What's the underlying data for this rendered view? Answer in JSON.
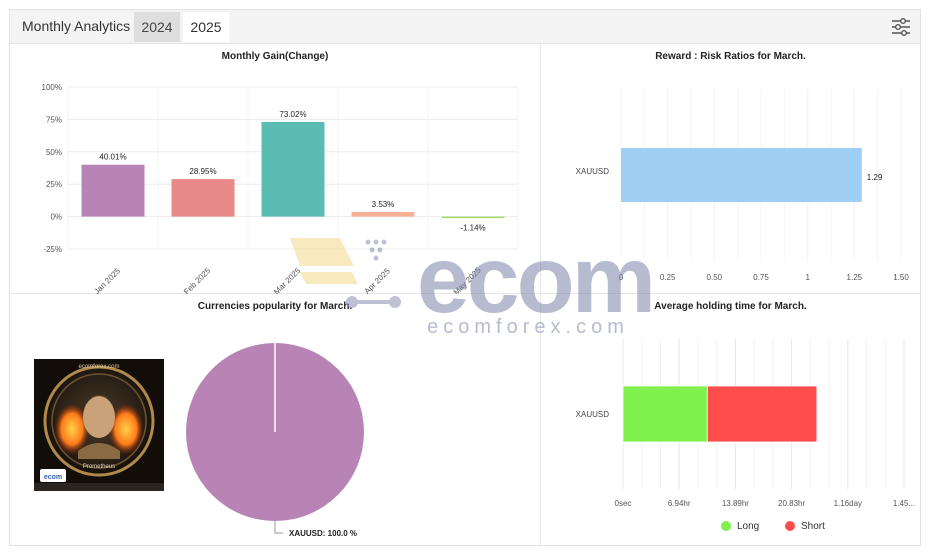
{
  "header": {
    "title": "Monthly Analytics",
    "tabs": [
      "2024",
      "2025"
    ],
    "active_tab": "2025"
  },
  "panels": {
    "gain_title": "Monthly Gain(Change)",
    "rr_title": "Reward : Risk Ratios for March.",
    "currency_title": "Currencies popularity for March.",
    "holding_title": "Average holding time for March."
  },
  "chart_data": [
    {
      "type": "bar",
      "title": "Monthly Gain(Change)",
      "categories": [
        "Jan 2025",
        "Feb 2025",
        "Mar 2025",
        "Apr 2025",
        "May 2025"
      ],
      "values": [
        40.01,
        28.95,
        73.02,
        3.53,
        -1.14
      ],
      "value_labels": [
        "40.01%",
        "28.95%",
        "73.02%",
        "3.53%",
        "-1.14%"
      ],
      "colors": [
        "#b784b5",
        "#e88a8a",
        "#5bbcb3",
        "#f8b195",
        "#9fd66a"
      ],
      "yticks": [
        "100%",
        "75%",
        "50%",
        "25%",
        "0%",
        "-25%"
      ],
      "ytick_values": [
        100,
        75,
        50,
        25,
        0,
        -25
      ],
      "ylim": [
        -25,
        100
      ],
      "grid": true
    },
    {
      "type": "bar",
      "orientation": "horizontal",
      "title": "Reward : Risk Ratios for March.",
      "categories": [
        "XAUUSD"
      ],
      "values": [
        1.29
      ],
      "value_labels": [
        "1.29"
      ],
      "color": "#9fcff5",
      "xticks": [
        "0",
        "0.25",
        "0.50",
        "0.75",
        "1",
        "1.25",
        "1.50"
      ],
      "xtick_values": [
        0,
        0.25,
        0.5,
        0.75,
        1,
        1.25,
        1.5
      ],
      "xlim": [
        0,
        1.5
      ],
      "grid": true
    },
    {
      "type": "pie",
      "title": "Currencies popularity for March.",
      "labels": [
        "XAUUSD"
      ],
      "values": [
        100.0
      ],
      "data_labels": [
        "XAUUSD: 100.0 %"
      ],
      "colors": [
        "#b784b5"
      ]
    },
    {
      "type": "bar",
      "orientation": "horizontal",
      "stacked": true,
      "title": "Average holding time for March.",
      "categories": [
        "XAUUSD"
      ],
      "series": [
        {
          "name": "Long",
          "values": [
            0.3
          ],
          "color": "#80f04c"
        },
        {
          "name": "Short",
          "values": [
            0.39
          ],
          "color": "#ff4d4d"
        }
      ],
      "xticks": [
        "0sec",
        "6.94hr",
        "13.89hr",
        "20.83hr",
        "1.16day",
        "1.45..."
      ],
      "xtick_values": [
        0,
        0.2,
        0.4,
        0.6,
        0.8,
        1.0
      ],
      "xlim": [
        0,
        1.0
      ],
      "legend": "bottom",
      "grid": true
    }
  ],
  "watermark": {
    "brand": "ecom",
    "text": "ecomforex.com"
  },
  "coin_image": {
    "top_text": "ecomforex.com",
    "caption": "Prometheus",
    "badge": "ecom"
  }
}
